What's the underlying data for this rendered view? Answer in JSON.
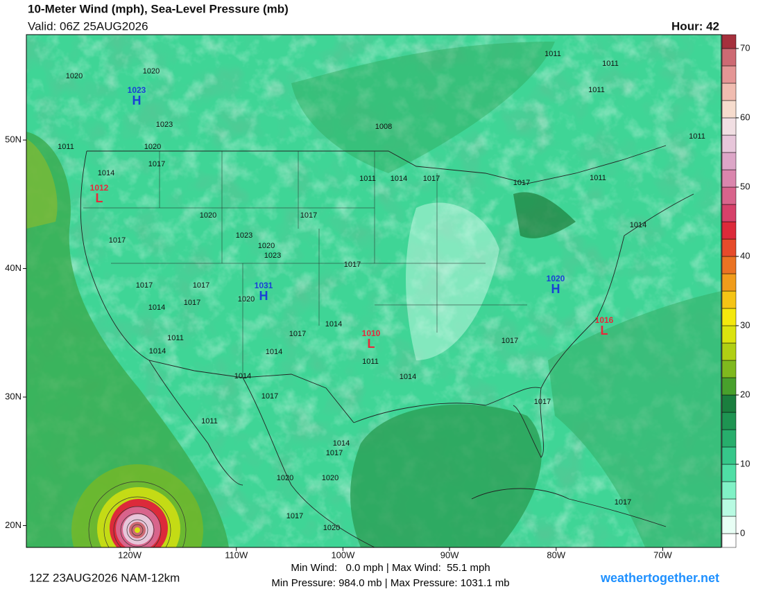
{
  "header": {
    "title": "10-Meter Wind (mph), Sea-Level Pressure (mb)",
    "valid": "Valid: 06Z 25AUG2026",
    "hour": "Hour: 42"
  },
  "map": {
    "latitude": {
      "lim": [
        18.3,
        58.2
      ],
      "ticks": [
        {
          "value": 50,
          "label": "50N"
        },
        {
          "value": 40,
          "label": "40N"
        },
        {
          "value": 30,
          "label": "30N"
        },
        {
          "value": 20,
          "label": "20N"
        }
      ]
    },
    "longitude": {
      "lim": [
        -129.7,
        -64.5
      ],
      "ticks": [
        {
          "value": -120,
          "label": "120W"
        },
        {
          "value": -110,
          "label": "110W"
        },
        {
          "value": -100,
          "label": "100W"
        },
        {
          "value": -90,
          "label": "90W"
        },
        {
          "value": -80,
          "label": "80W"
        },
        {
          "value": -70,
          "label": "70W"
        }
      ]
    },
    "isobar_labels": [
      "1020",
      "1020",
      "1023",
      "1020",
      "1011",
      "1017",
      "1014",
      "1020",
      "1023",
      "1020",
      "1023",
      "1017",
      "1017",
      "1017",
      "1011",
      "1014",
      "1017",
      "1008",
      "1017",
      "1011",
      "1011",
      "1011",
      "1011",
      "1011",
      "1014",
      "1017",
      "1017",
      "1014",
      "1017",
      "1020",
      "1011",
      "1014",
      "1014",
      "1017",
      "1011",
      "1014",
      "1014",
      "1017",
      "1014",
      "1017",
      "1017",
      "1011",
      "1014",
      "1017",
      "1020",
      "1020",
      "1017",
      "1020",
      "1017"
    ],
    "pressure_centers": [
      {
        "value": "1023",
        "letter": "H",
        "color": "#1a3fd6"
      },
      {
        "value": "1012",
        "letter": "L",
        "color": "#e8283a"
      },
      {
        "value": "1031",
        "letter": "H",
        "color": "#1a3fd6"
      },
      {
        "value": "1010",
        "letter": "L",
        "color": "#e8283a"
      },
      {
        "value": "1020",
        "letter": "H",
        "color": "#1a3fd6"
      },
      {
        "value": "1016",
        "letter": "L",
        "color": "#e8283a"
      }
    ]
  },
  "colorbar": {
    "lim": [
      -2,
      72
    ],
    "ticks": [
      0,
      10,
      20,
      30,
      40,
      50,
      60,
      70
    ],
    "levels": [
      0,
      2.5,
      5,
      7.5,
      10,
      12.5,
      15,
      17.5,
      20,
      22.5,
      25,
      27.5,
      30,
      32.5,
      35,
      37.5,
      40,
      42.5,
      45,
      47.5,
      50,
      52.5,
      55,
      57.5,
      60,
      62.5,
      65,
      67.5,
      70
    ],
    "colors": [
      "#ffffff",
      "#e8fff5",
      "#b8fbe2",
      "#80f2c6",
      "#4fdea5",
      "#36c78a",
      "#27ae6c",
      "#1e9452",
      "#1a7e3e",
      "#48a02c",
      "#7fb91e",
      "#b0cf14",
      "#dbe30f",
      "#f4e80d",
      "#f5c415",
      "#f09c1b",
      "#ea7323",
      "#e64b2b",
      "#dc2a3a",
      "#d6416a",
      "#d8648c",
      "#da86ad",
      "#dca6c7",
      "#e7c6da",
      "#f1dfe3",
      "#f6dccd",
      "#f0bcb0",
      "#e49695",
      "#cd6a73",
      "#a5313d"
    ]
  },
  "footer": {
    "run": "12Z 23AUG2026 NAM-12km",
    "wind": "Min Wind:   0.0 mph | Max Wind:  55.1 mph",
    "pressure": "Min Pressure: 984.0 mb | Max Pressure: 1031.1 mb",
    "site": "weathertogether.net"
  }
}
